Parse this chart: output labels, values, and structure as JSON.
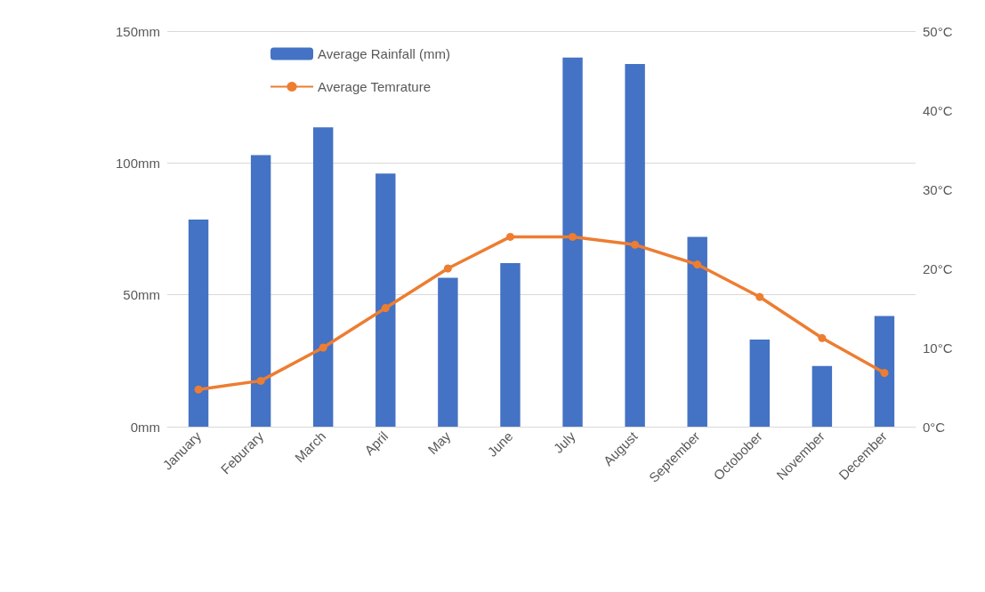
{
  "chart_data": {
    "type": "bar",
    "categories": [
      "January",
      "Feburary",
      "March",
      "April",
      "May",
      "June",
      "July",
      "August",
      "September",
      "Octobober",
      "November",
      "December"
    ],
    "series": [
      {
        "name": "Average Rainfall (mm)",
        "color": "#4472c4",
        "values": [
          78.5,
          103,
          113.5,
          96,
          56.5,
          62,
          140,
          137.5,
          72,
          33,
          23,
          42
        ]
      },
      {
        "name": "Average Temrature",
        "type": "line",
        "axis": "y2",
        "color": "#ed7d31",
        "marker": "circle",
        "values": [
          4.7,
          5.8,
          10,
          15,
          20,
          24,
          24,
          23,
          20.5,
          16.4,
          11.2,
          6.8
        ]
      }
    ],
    "ylim": [
      0,
      150
    ],
    "yticks": [
      {
        "value": 0,
        "label": "0mm"
      },
      {
        "value": 50,
        "label": "50mm"
      },
      {
        "value": 100,
        "label": "100mm"
      },
      {
        "value": 150,
        "label": "150mm"
      }
    ],
    "y2lim": [
      0,
      50
    ],
    "y2ticks": [
      {
        "value": 0,
        "label": "0°C"
      },
      {
        "value": 10,
        "label": "10°C"
      },
      {
        "value": 20,
        "label": "20°C"
      },
      {
        "value": 30,
        "label": "30°C"
      },
      {
        "value": 40,
        "label": "40°C"
      },
      {
        "value": 50,
        "label": "50°C"
      }
    ],
    "grid": "y",
    "legend": "top left"
  }
}
